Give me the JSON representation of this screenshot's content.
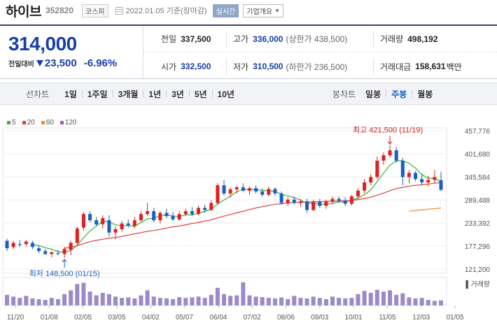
{
  "header": {
    "name": "하이브",
    "code": "352820",
    "market": "코스피",
    "date": "2022.01.05 기준(장마감)",
    "realtime": "실시간",
    "company_info": "기업개요"
  },
  "summary": {
    "price": "314,000",
    "change_label": "전일대비",
    "change": "23,500",
    "change_pct": "-6.96%",
    "prev_label": "전일",
    "prev": "337,500",
    "high_label": "고가",
    "high": "336,000",
    "upper_limit": "(상한가 438,500)",
    "volume_label": "거래량",
    "volume": "498,192",
    "open_label": "시가",
    "open": "332,500",
    "low_label": "저가",
    "low": "310,500",
    "lower_limit": "(하한가 236,500)",
    "amount_label": "거래대금",
    "amount": "158,631",
    "amount_unit": "백만"
  },
  "toolbar": {
    "line_label": "선차트",
    "line_items": [
      "1일",
      "1주일",
      "3개월",
      "1년",
      "3년",
      "5년",
      "10년"
    ],
    "candle_label": "봉차트",
    "candle_items": [
      "일봉",
      "주봉",
      "월봉"
    ],
    "active": "주봉"
  },
  "colors": {
    "up": "#e02020",
    "down": "#1a5fc5",
    "ma5": "#36b336",
    "ma20": "#e04040",
    "ma60": "#f08a24",
    "ma120": "#9b59d0",
    "volume": "#9b8ac9"
  },
  "chart_data": {
    "type": "candlestick",
    "title": "",
    "legend": [
      {
        "label": "5",
        "color": "#36b336"
      },
      {
        "label": "20",
        "color": "#e04040"
      },
      {
        "label": "60",
        "color": "#f08a24"
      },
      {
        "label": "120",
        "color": "#9b59d0"
      }
    ],
    "y_ticks": [
      "457,776",
      "401,680",
      "345,584",
      "289,488",
      "233,392",
      "177,296",
      "121,200"
    ],
    "ylim": [
      121200,
      457776
    ],
    "x_ticks": [
      "11/20",
      "01/08",
      "02/05",
      "03/05",
      "04/02",
      "05/07",
      "06/04",
      "07/02",
      "08/06",
      "09/03",
      "10/01",
      "11/05",
      "12/03",
      "01/05"
    ],
    "volume_label": "거래량",
    "high_annotation": "최고 421,500 (11/19)",
    "low_annotation": "최저 148,500 (01/15)",
    "candles": [
      [
        190000,
        195000,
        165000,
        172000
      ],
      [
        175000,
        190000,
        170000,
        185000
      ],
      [
        182000,
        192000,
        175000,
        180000
      ],
      [
        182000,
        192000,
        176000,
        188000
      ],
      [
        185000,
        190000,
        170000,
        175000
      ],
      [
        172000,
        178000,
        160000,
        165000
      ],
      [
        165000,
        170000,
        155000,
        158000
      ],
      [
        158000,
        165000,
        150000,
        162000
      ],
      [
        160000,
        168000,
        155000,
        158000
      ],
      [
        158000,
        175000,
        148500,
        170000
      ],
      [
        168000,
        190000,
        155000,
        185000
      ],
      [
        185000,
        225000,
        180000,
        220000
      ],
      [
        222000,
        260000,
        215000,
        255000
      ],
      [
        255000,
        262000,
        235000,
        240000
      ],
      [
        240000,
        248000,
        225000,
        230000
      ],
      [
        230000,
        252000,
        220000,
        245000
      ],
      [
        240000,
        252000,
        200000,
        210000
      ],
      [
        210000,
        225000,
        195000,
        218000
      ],
      [
        218000,
        238000,
        212000,
        232000
      ],
      [
        232000,
        242000,
        222000,
        228000
      ],
      [
        226000,
        248000,
        220000,
        240000
      ],
      [
        240000,
        262000,
        236000,
        255000
      ],
      [
        255000,
        282000,
        250000,
        262000
      ],
      [
        262000,
        270000,
        235000,
        240000
      ],
      [
        240000,
        262000,
        232000,
        258000
      ],
      [
        258000,
        268000,
        245000,
        250000
      ],
      [
        250000,
        260000,
        238000,
        242000
      ],
      [
        242000,
        262000,
        238000,
        255000
      ],
      [
        255000,
        268000,
        250000,
        262000
      ],
      [
        262000,
        272000,
        250000,
        255000
      ],
      [
        255000,
        275000,
        252000,
        270000
      ],
      [
        270000,
        278000,
        258000,
        265000
      ],
      [
        265000,
        288000,
        262000,
        282000
      ],
      [
        282000,
        330000,
        278000,
        325000
      ],
      [
        325000,
        338000,
        300000,
        305000
      ],
      [
        305000,
        320000,
        295000,
        315000
      ],
      [
        315000,
        325000,
        305000,
        320000
      ],
      [
        320000,
        330000,
        308000,
        312000
      ],
      [
        312000,
        322000,
        302000,
        318000
      ],
      [
        318000,
        325000,
        305000,
        310000
      ],
      [
        310000,
        318000,
        298000,
        302000
      ],
      [
        302000,
        322000,
        298000,
        316000
      ],
      [
        316000,
        320000,
        300000,
        305000
      ],
      [
        305000,
        310000,
        278000,
        282000
      ],
      [
        282000,
        295000,
        275000,
        290000
      ],
      [
        290000,
        298000,
        278000,
        282000
      ],
      [
        282000,
        292000,
        272000,
        286000
      ],
      [
        286000,
        292000,
        258000,
        265000
      ],
      [
        265000,
        290000,
        262000,
        285000
      ],
      [
        285000,
        292000,
        270000,
        275000
      ],
      [
        275000,
        290000,
        268000,
        285000
      ],
      [
        285000,
        298000,
        280000,
        292000
      ],
      [
        292000,
        298000,
        282000,
        288000
      ],
      [
        288000,
        296000,
        275000,
        280000
      ],
      [
        280000,
        302000,
        276000,
        298000
      ],
      [
        298000,
        318000,
        290000,
        312000
      ],
      [
        312000,
        340000,
        305000,
        332000
      ],
      [
        332000,
        352000,
        325000,
        345000
      ],
      [
        345000,
        395000,
        340000,
        385000
      ],
      [
        385000,
        405000,
        375000,
        398000
      ],
      [
        398000,
        421500,
        392000,
        410000
      ],
      [
        410000,
        418000,
        380000,
        385000
      ],
      [
        385000,
        392000,
        325000,
        345000
      ],
      [
        345000,
        362000,
        330000,
        355000
      ],
      [
        355000,
        360000,
        335000,
        340000
      ],
      [
        340000,
        352000,
        325000,
        332000
      ],
      [
        332000,
        348000,
        322000,
        338000
      ],
      [
        338000,
        362000,
        330000,
        345000
      ],
      [
        337500,
        358000,
        310500,
        314000
      ]
    ],
    "ma20_values": [
      null,
      null,
      null,
      null,
      null,
      null,
      null,
      null,
      null,
      172000,
      174000,
      178000,
      183000,
      188000,
      191000,
      194000,
      196000,
      198000,
      201000,
      204000,
      207000,
      210000,
      213000,
      215000,
      218000,
      221000,
      224000,
      226000,
      229000,
      232000,
      235000,
      238000,
      241000,
      246000,
      250000,
      254000,
      258000,
      262000,
      266000,
      270000,
      273000,
      276000,
      279000,
      280000,
      282000,
      283000,
      284000,
      284000,
      285000,
      285000,
      286000,
      286000,
      287000,
      287000,
      288000,
      290000,
      293000,
      296000,
      301000,
      306000,
      312000,
      317000,
      320000,
      323000,
      325000,
      326000,
      328000,
      330000,
      332000
    ],
    "ma60_values": [
      null,
      null,
      null,
      null,
      null,
      null,
      null,
      null,
      null,
      null,
      null,
      null,
      null,
      null,
      null,
      null,
      null,
      null,
      null,
      null,
      null,
      null,
      null,
      null,
      null,
      null,
      null,
      null,
      null,
      null,
      null,
      null,
      null,
      null,
      null,
      null,
      null,
      null,
      null,
      null,
      null,
      null,
      null,
      null,
      null,
      null,
      null,
      null,
      null,
      null,
      null,
      null,
      null,
      null,
      null,
      null,
      null,
      null,
      null,
      null,
      null,
      null,
      null,
      262000,
      264000,
      265000,
      267000,
      268000,
      270000
    ],
    "volumes": [
      0.42,
      0.35,
      0.3,
      0.38,
      0.28,
      0.25,
      0.22,
      0.3,
      0.25,
      0.45,
      0.6,
      0.85,
      0.9,
      0.55,
      0.4,
      0.5,
      0.45,
      0.35,
      0.3,
      0.32,
      0.28,
      0.4,
      0.6,
      0.35,
      0.3,
      0.28,
      0.25,
      0.33,
      0.3,
      0.32,
      0.35,
      0.3,
      0.42,
      0.7,
      0.45,
      0.38,
      0.4,
      0.92,
      0.4,
      0.35,
      0.33,
      0.3,
      0.28,
      0.32,
      0.25,
      0.38,
      0.3,
      0.28,
      0.35,
      0.3,
      0.25,
      0.35,
      0.3,
      0.28,
      0.3,
      0.45,
      0.58,
      0.5,
      0.62,
      0.55,
      0.6,
      0.42,
      0.48,
      0.32,
      0.28,
      0.3,
      0.22,
      0.18,
      0.2
    ]
  }
}
